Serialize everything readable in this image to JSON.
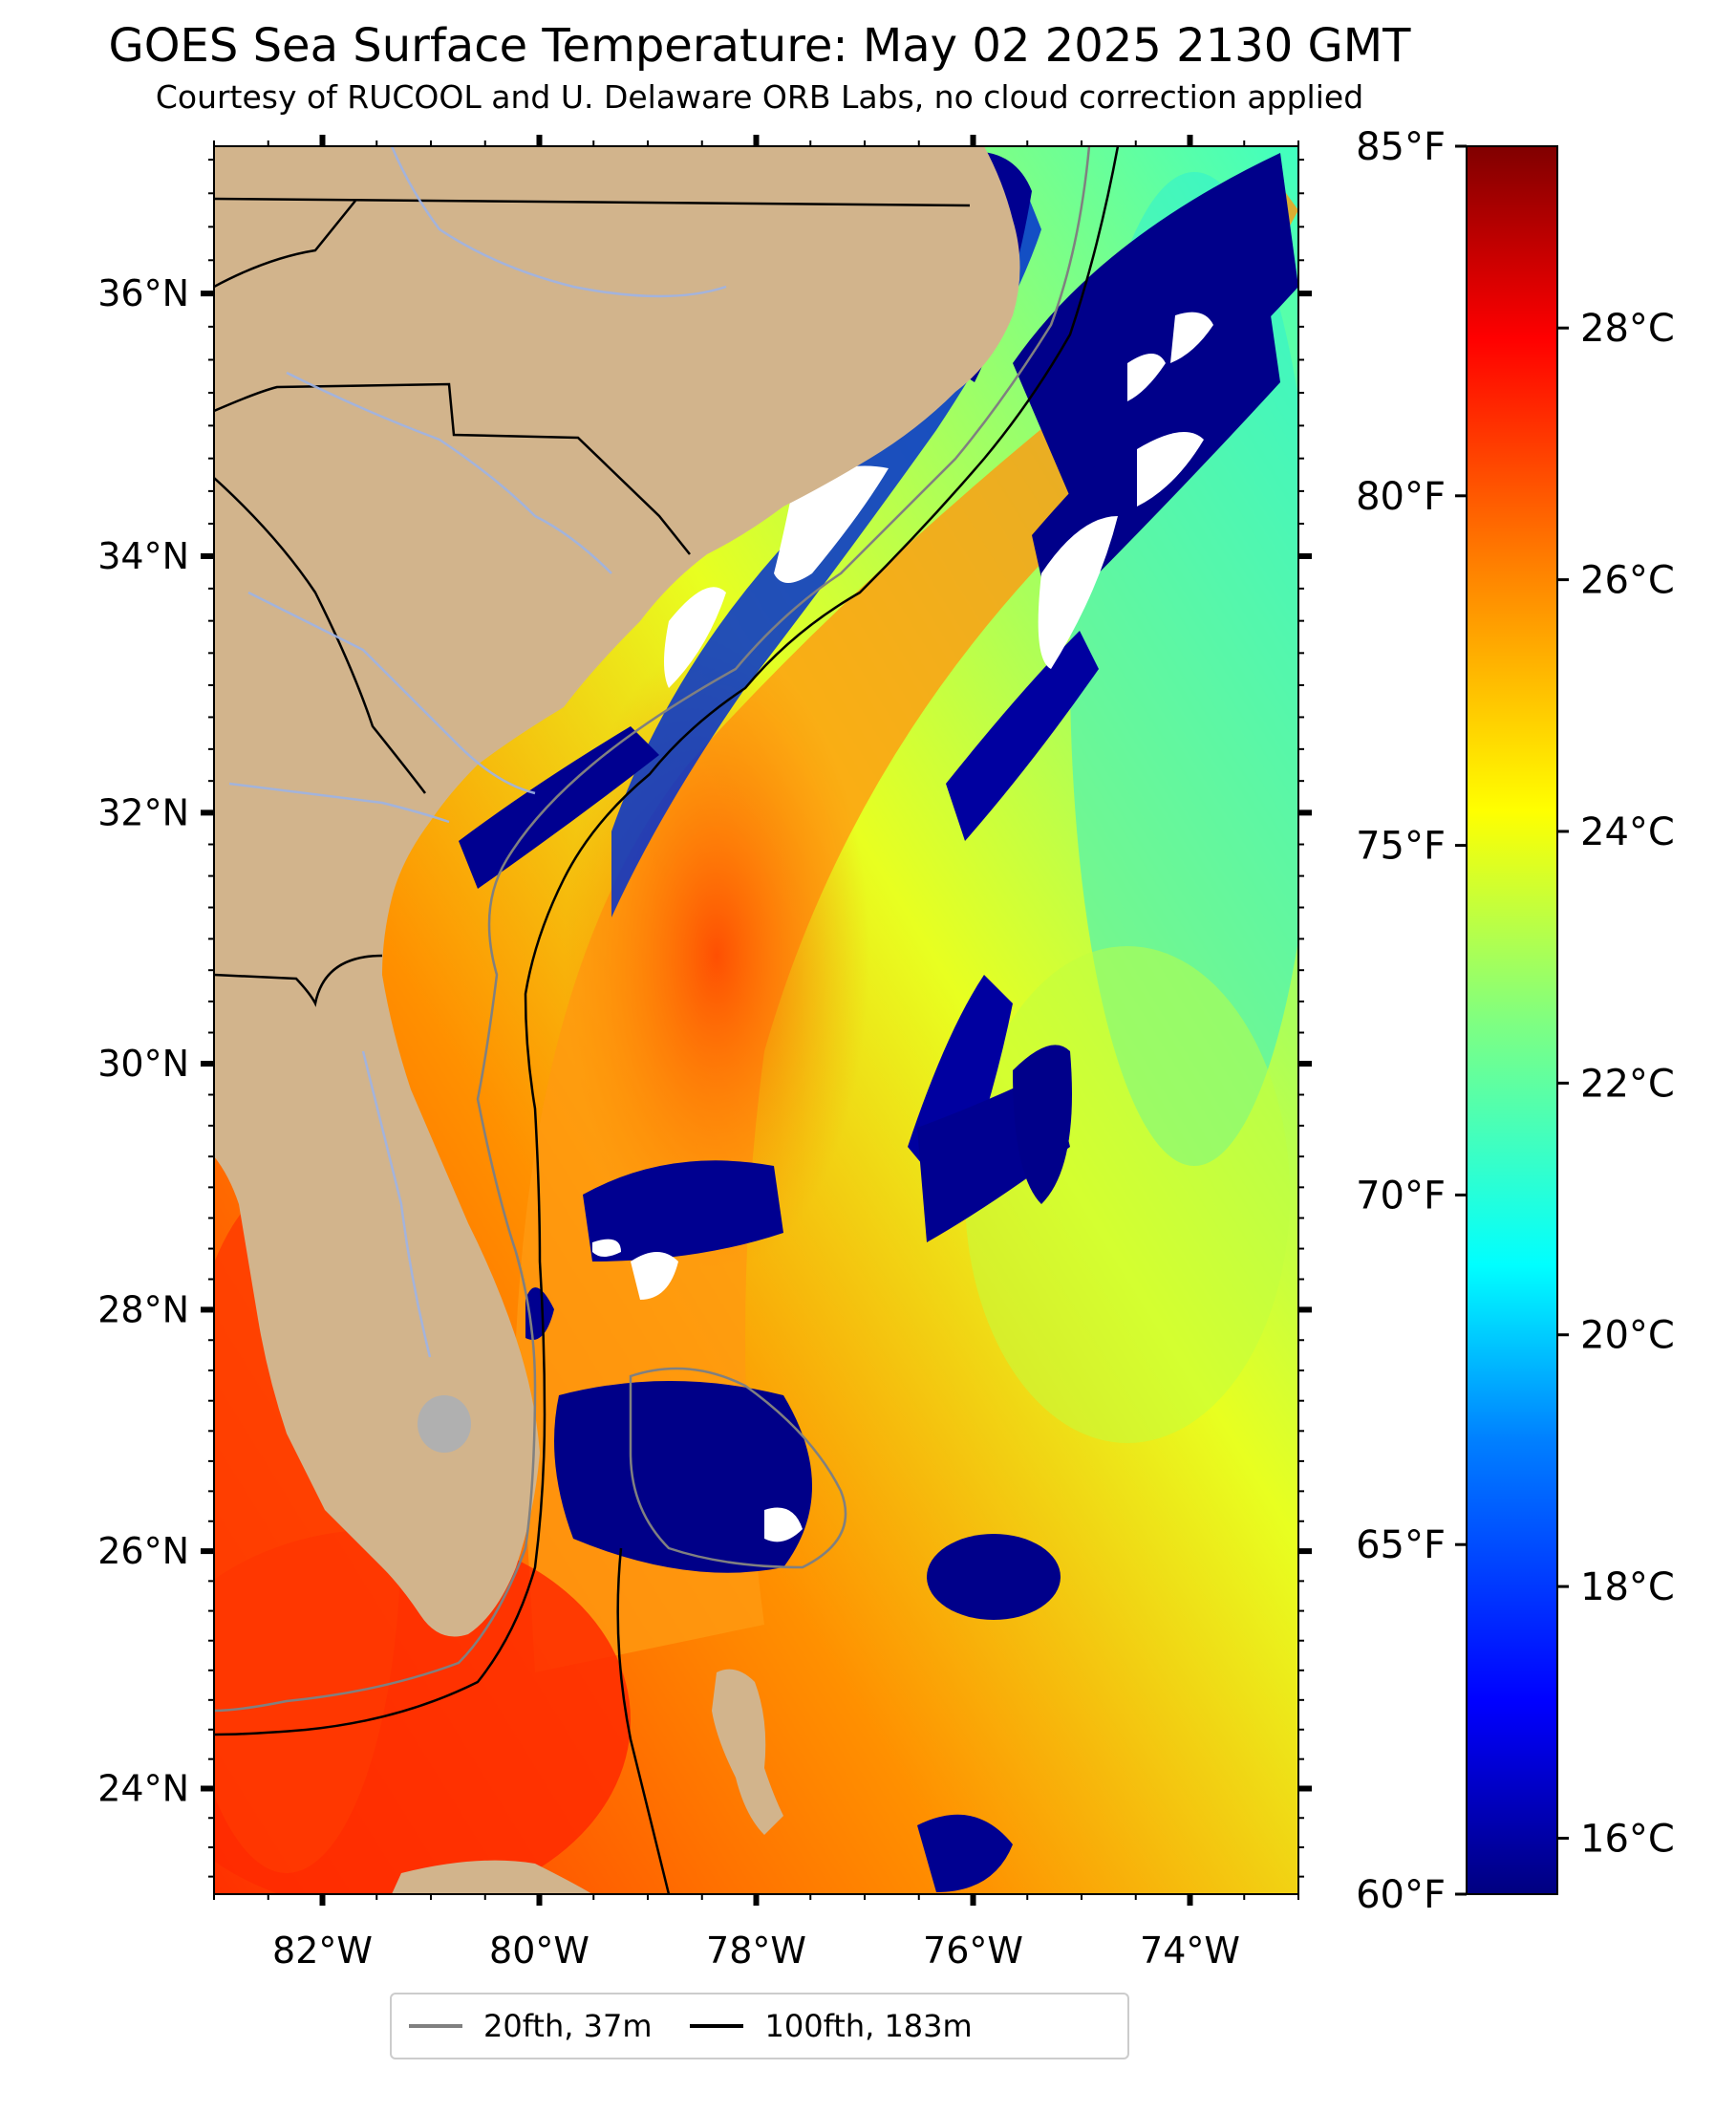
{
  "title": "GOES Sea Surface Temperature: May 02 2025 2130 GMT",
  "subtitle": "Courtesy of RUCOOL and U. Delaware ORB Labs, no cloud correction applied",
  "colors": {
    "land": "#d2b48c",
    "state_border": "#000000",
    "river": "#9db3e4",
    "contour_20fth": "#808080",
    "contour_100fth": "#000000",
    "cloud_mask": "#ffffff",
    "lake": "#b0b0b0",
    "colormap": [
      "#000080",
      "#0000ff",
      "#0080ff",
      "#00ffff",
      "#80ff80",
      "#ffff00",
      "#ff8000",
      "#ff0000",
      "#800000"
    ]
  },
  "map_extent": {
    "lon_min": -83,
    "lon_max": -73,
    "lat_min": 23.1,
    "lat_max": 37.1
  },
  "lon_ticks": [
    {
      "value": -82,
      "label": "82°W"
    },
    {
      "value": -80,
      "label": "80°W"
    },
    {
      "value": -78,
      "label": "78°W"
    },
    {
      "value": -76,
      "label": "76°W"
    },
    {
      "value": -74,
      "label": "74°W"
    }
  ],
  "lat_ticks": [
    {
      "value": 36,
      "label": "36°N"
    },
    {
      "value": 34,
      "label": "34°N"
    },
    {
      "value": 32,
      "label": "32°N"
    },
    {
      "value": 30,
      "label": "30°N"
    },
    {
      "value": 28,
      "label": "28°N"
    },
    {
      "value": 26,
      "label": "26°N"
    },
    {
      "value": 24,
      "label": "24°N"
    }
  ],
  "colorbar": {
    "range_f": [
      60,
      85
    ],
    "fahrenheit_ticks": [
      {
        "value": 85,
        "label": "85°F"
      },
      {
        "value": 80,
        "label": "80°F"
      },
      {
        "value": 75,
        "label": "75°F"
      },
      {
        "value": 70,
        "label": "70°F"
      },
      {
        "value": 65,
        "label": "65°F"
      },
      {
        "value": 60,
        "label": "60°F"
      }
    ],
    "celsius_ticks": [
      {
        "value": 28,
        "label": "28°C"
      },
      {
        "value": 26,
        "label": "26°C"
      },
      {
        "value": 24,
        "label": "24°C"
      },
      {
        "value": 22,
        "label": "22°C"
      },
      {
        "value": 20,
        "label": "20°C"
      },
      {
        "value": 18,
        "label": "18°C"
      },
      {
        "value": 16,
        "label": "16°C"
      }
    ]
  },
  "legend": [
    {
      "label": "20fth, 37m",
      "color": "#808080"
    },
    {
      "label": "100fth, 183m",
      "color": "#000000"
    }
  ]
}
